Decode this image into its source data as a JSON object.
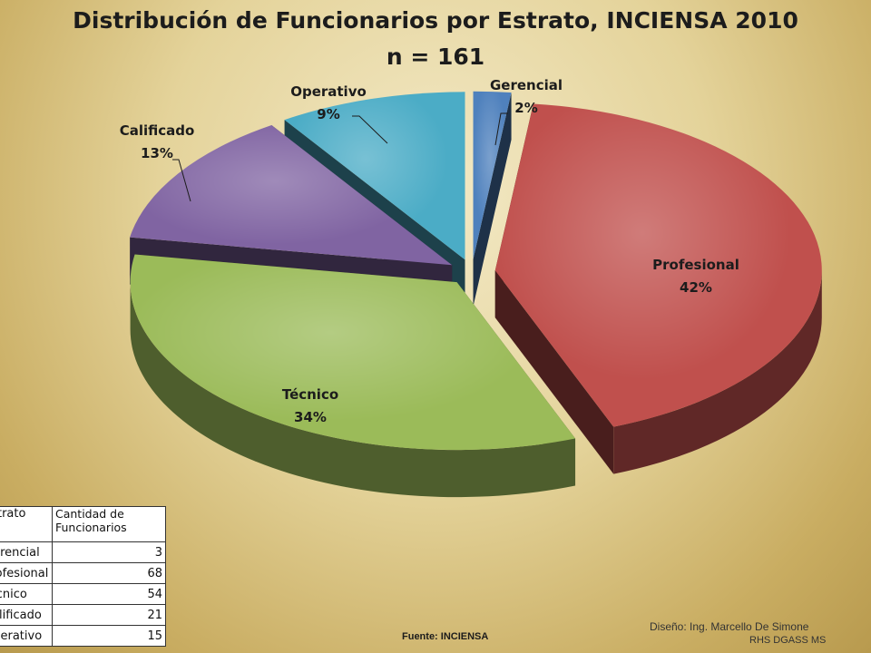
{
  "chart_data": {
    "type": "pie",
    "title": "Distribución de Funcionarios por Estrato, INCIENSA 2010",
    "subtitle": "n = 161",
    "slices": [
      {
        "label": "Gerencial",
        "percent_label": "2%",
        "value": 3,
        "color": "#4f81bd"
      },
      {
        "label": "Profesional",
        "percent_label": "42%",
        "value": 68,
        "color": "#c0504d"
      },
      {
        "label": "Técnico",
        "percent_label": "34%",
        "value": 54,
        "color": "#9bbb59"
      },
      {
        "label": "Calificado",
        "percent_label": "13%",
        "value": 21,
        "color": "#8064a2"
      },
      {
        "label": "Operativo",
        "percent_label": "9%",
        "value": 15,
        "color": "#4bacc6"
      }
    ]
  },
  "table": {
    "headers": [
      "Estrato",
      "Cantidad de Funcionarios"
    ],
    "rows": [
      [
        "Gerencial",
        "3"
      ],
      [
        "Profesional",
        "68"
      ],
      [
        "Técnico",
        "54"
      ],
      [
        "Calificado",
        "21"
      ],
      [
        "Operativo",
        "15"
      ]
    ]
  },
  "footer": {
    "fuente": "Fuente:  INCIENSA",
    "diseno": "Diseño: Ing. Marcello De Simone",
    "org": "RHS DGASS MS"
  }
}
